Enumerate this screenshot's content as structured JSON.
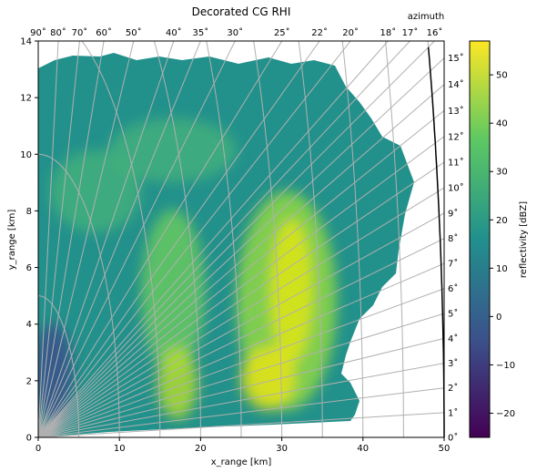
{
  "chart_data": {
    "type": "heatmap",
    "title": "Decorated CG RHI",
    "xlabel": "x_range [km]",
    "ylabel": "y_range [km]",
    "xlim": [
      0,
      50
    ],
    "ylim": [
      0,
      14
    ],
    "xticks": [
      "0",
      "10",
      "20",
      "30",
      "40",
      "50"
    ],
    "yticks": [
      "0",
      "2",
      "4",
      "6",
      "8",
      "10",
      "12",
      "14"
    ],
    "top_axis_label": "azimuth",
    "top_ticks": [
      "90˚",
      "80˚",
      "70˚",
      "60˚",
      "50˚",
      "40˚",
      "35˚",
      "30˚",
      "25˚",
      "22˚",
      "20˚",
      "18˚",
      "17˚",
      "16˚"
    ],
    "right_ticks": [
      "0˚",
      "1˚",
      "2˚",
      "3˚",
      "4˚",
      "5˚",
      "6˚",
      "7˚",
      "8˚",
      "9˚",
      "10˚",
      "11˚",
      "12˚",
      "13˚",
      "14˚",
      "15˚"
    ],
    "grid": true,
    "colorbar": {
      "label": "reflectivity [dBZ]",
      "range": [
        -25,
        57
      ],
      "ticks": [
        "−20",
        "−10",
        "0",
        "10",
        "20",
        "30",
        "40",
        "50"
      ],
      "colormap": [
        "#440154",
        "#3b528b",
        "#21908d",
        "#5dc863",
        "#fde725"
      ]
    }
  }
}
